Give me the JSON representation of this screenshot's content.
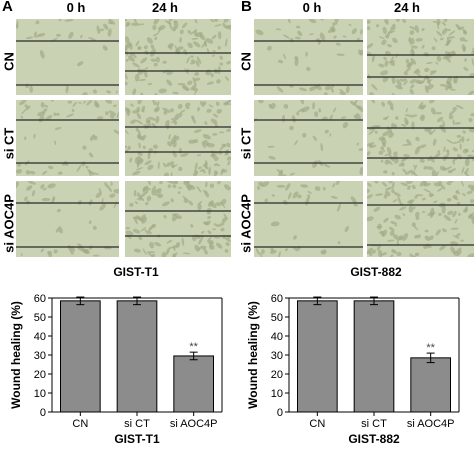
{
  "panels": [
    {
      "letter": "A",
      "col_headers": [
        "0 h",
        "24 h"
      ],
      "row_labels": [
        "CN",
        "si CT",
        "si AOC4P"
      ],
      "caption": "GIST-T1"
    },
    {
      "letter": "B",
      "col_headers": [
        "0 h",
        "24 h"
      ],
      "row_labels": [
        "CN",
        "si CT",
        "si AOC4P"
      ],
      "caption": "GIST-882"
    }
  ],
  "colors": {
    "micrograph_bg": "#c9d2b2",
    "micrograph_line": "#2a2a2a",
    "cell_color": "#a3ab87",
    "bar_fill": "#8c8c8c",
    "bar_stroke": "#000000"
  },
  "chart_data": [
    {
      "type": "bar",
      "categories": [
        "CN",
        "si CT",
        "si AOC4P"
      ],
      "values": [
        58.5,
        58.5,
        29.5
      ],
      "errors": [
        2,
        2,
        2
      ],
      "annotations": [
        "",
        "",
        "**"
      ],
      "ylabel": "Wound healing (%)",
      "xlabel": "GIST-T1",
      "ylim": [
        0,
        60
      ],
      "yticks": [
        0,
        10,
        20,
        30,
        40,
        50,
        60
      ],
      "grid": false
    },
    {
      "type": "bar",
      "categories": [
        "CN",
        "si CT",
        "si AOC4P"
      ],
      "values": [
        58.5,
        58.5,
        28.5
      ],
      "errors": [
        2,
        2,
        2.5
      ],
      "annotations": [
        "",
        "",
        "**"
      ],
      "ylabel": "Wound healing (%)",
      "xlabel": "GIST-882",
      "ylim": [
        0,
        60
      ],
      "yticks": [
        0,
        10,
        20,
        30,
        40,
        50,
        60
      ],
      "grid": false
    }
  ]
}
